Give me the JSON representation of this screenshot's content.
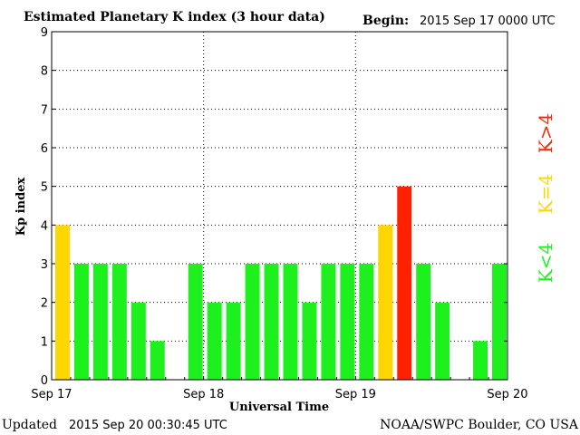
{
  "header": {
    "title": "Estimated Planetary K index (3 hour data)",
    "begin_label": "Begin:",
    "begin_value": "2015 Sep 17 0000 UTC"
  },
  "footer": {
    "updated_label": "Updated",
    "updated_value": "2015 Sep 20 00:30:45 UTC",
    "source": "NOAA/SWPC Boulder, CO USA"
  },
  "legend": [
    {
      "label": "K<4",
      "color": "#1ef01e"
    },
    {
      "label": "K=4",
      "color": "#ffd700"
    },
    {
      "label": "K>4",
      "color": "#ff2200"
    }
  ],
  "colors": {
    "below": "#1ef01e",
    "equal": "#ffd700",
    "above": "#ff2200"
  },
  "chart_data": {
    "type": "bar",
    "xlabel": "Universal Time",
    "ylabel": "Kp index",
    "ylim": [
      0,
      9
    ],
    "yticks": [
      "0",
      "1",
      "2",
      "3",
      "4",
      "5",
      "6",
      "7",
      "8",
      "9"
    ],
    "xticks": [
      "Sep 17",
      "Sep 18",
      "Sep 19",
      "Sep 20"
    ],
    "grid": true,
    "bars_per_day": 8,
    "values": [
      4,
      3,
      3,
      3,
      2,
      1,
      0,
      3,
      2,
      2,
      3,
      3,
      3,
      2,
      3,
      3,
      3,
      4,
      5,
      3,
      2,
      0,
      1,
      3
    ]
  }
}
